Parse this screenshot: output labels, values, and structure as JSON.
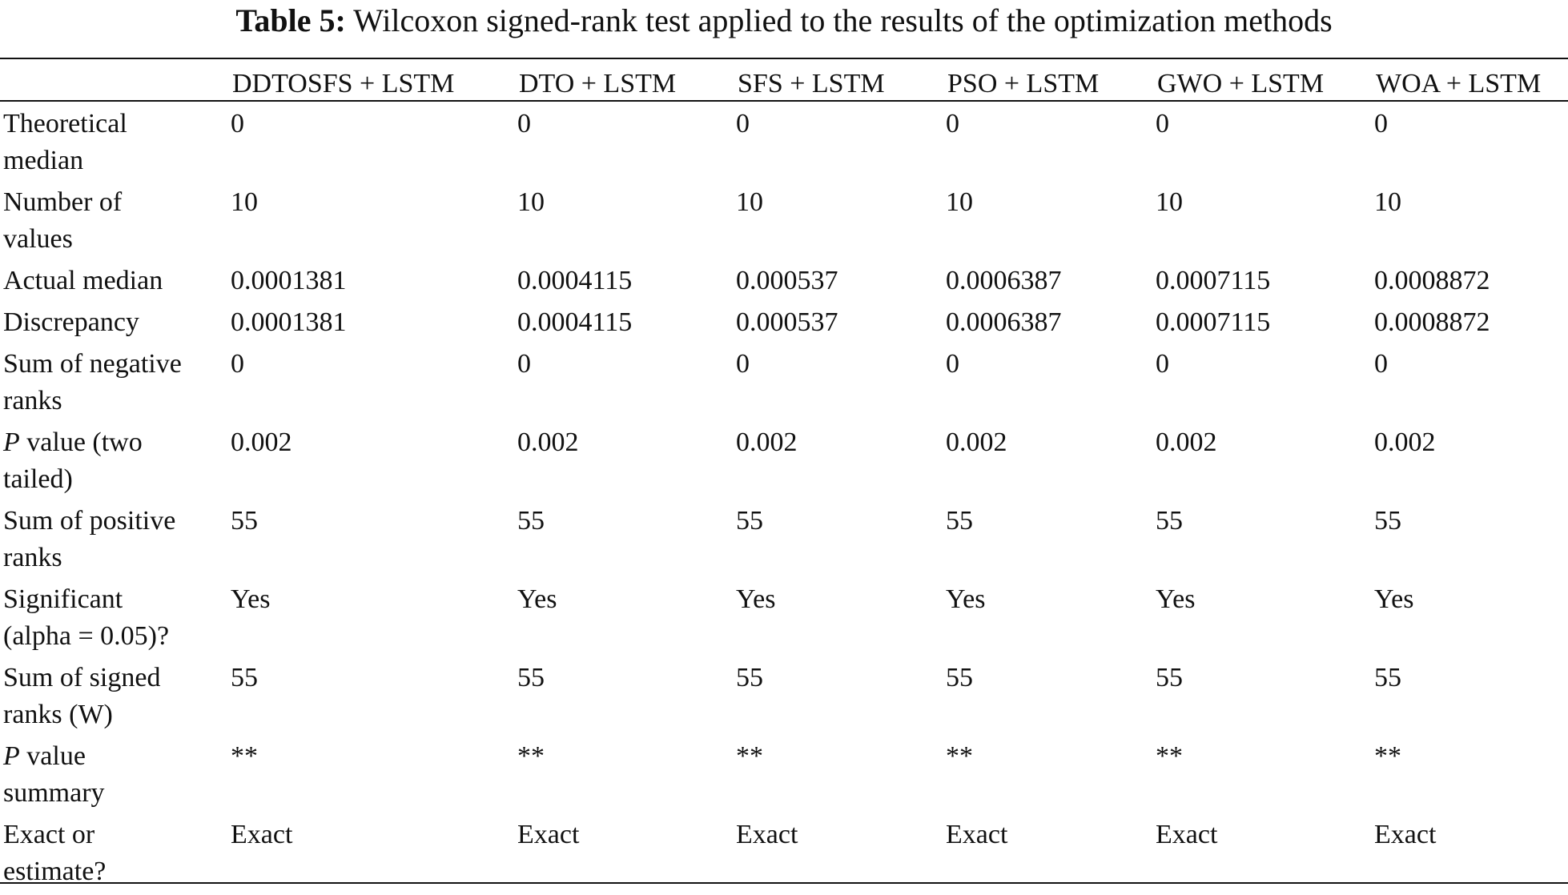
{
  "caption": {
    "label": "Table 5:",
    "text": "Wilcoxon signed-rank test applied to the results of the optimization methods"
  },
  "table": {
    "columns": [
      "",
      "DDTOSFS + LSTM",
      "DTO + LSTM",
      "SFS + LSTM",
      "PSO + LSTM",
      "GWO + LSTM",
      "WOA + LSTM"
    ],
    "rows": [
      {
        "head_line1": "Theoretical",
        "head_line2": "median",
        "values": [
          "0",
          "0",
          "0",
          "0",
          "0",
          "0"
        ]
      },
      {
        "head_line1": "Number of",
        "head_line2": "values",
        "values": [
          "10",
          "10",
          "10",
          "10",
          "10",
          "10"
        ]
      },
      {
        "head_line1": "Actual median",
        "head_line2": "",
        "values": [
          "0.0001381",
          "0.0004115",
          "0.000537",
          "0.0006387",
          "0.0007115",
          "0.0008872"
        ]
      },
      {
        "head_line1": "Discrepancy",
        "head_line2": "",
        "values": [
          "0.0001381",
          "0.0004115",
          "0.000537",
          "0.0006387",
          "0.0007115",
          "0.0008872"
        ]
      },
      {
        "head_line1": "Sum of negative",
        "head_line2": "ranks",
        "values": [
          "0",
          "0",
          "0",
          "0",
          "0",
          "0"
        ]
      },
      {
        "head_italic": "P",
        "head_line1": " value (two",
        "head_line2": "tailed)",
        "values": [
          "0.002",
          "0.002",
          "0.002",
          "0.002",
          "0.002",
          "0.002"
        ]
      },
      {
        "head_line1": "Sum of positive",
        "head_line2": "ranks",
        "values": [
          "55",
          "55",
          "55",
          "55",
          "55",
          "55"
        ]
      },
      {
        "head_line1": "Significant",
        "head_line2": "(alpha = 0.05)?",
        "values": [
          "Yes",
          "Yes",
          "Yes",
          "Yes",
          "Yes",
          "Yes"
        ]
      },
      {
        "head_line1": "Sum of signed",
        "head_line2": "ranks (W)",
        "values": [
          "55",
          "55",
          "55",
          "55",
          "55",
          "55"
        ]
      },
      {
        "head_italic": "P",
        "head_line1": " value",
        "head_line2": "summary",
        "values": [
          "**",
          "**",
          "**",
          "**",
          "**",
          "**"
        ]
      },
      {
        "head_line1": "Exact or",
        "head_line2": "estimate?",
        "values": [
          "Exact",
          "Exact",
          "Exact",
          "Exact",
          "Exact",
          "Exact"
        ]
      }
    ]
  }
}
